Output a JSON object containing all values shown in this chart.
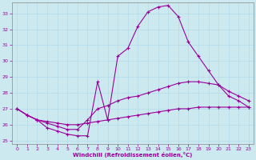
{
  "xlabel": "Windchill (Refroidissement éolien,°C)",
  "bg_color": "#cce9f0",
  "line_color": "#990099",
  "grid_color": "#add8e6",
  "spine_color": "#888888",
  "xlim": [
    -0.5,
    23.5
  ],
  "ylim": [
    24.8,
    33.7
  ],
  "yticks": [
    25,
    26,
    27,
    28,
    29,
    30,
    31,
    32,
    33
  ],
  "xticks": [
    0,
    1,
    2,
    3,
    4,
    5,
    6,
    7,
    8,
    9,
    10,
    11,
    12,
    13,
    14,
    15,
    16,
    17,
    18,
    19,
    20,
    21,
    22,
    23
  ],
  "line1_x": [
    0,
    1,
    2,
    3,
    4,
    5,
    6,
    7,
    8,
    9,
    10,
    11,
    12,
    13,
    14,
    15,
    16,
    17,
    18,
    19,
    20,
    21,
    22,
    23
  ],
  "line1_y": [
    27.0,
    26.6,
    26.3,
    25.8,
    25.6,
    25.4,
    25.3,
    25.3,
    28.7,
    26.3,
    30.3,
    30.8,
    32.2,
    33.1,
    33.4,
    33.5,
    32.8,
    31.2,
    30.3,
    29.4,
    28.5,
    27.8,
    27.5,
    27.1
  ],
  "line2_x": [
    0,
    1,
    2,
    3,
    4,
    5,
    6,
    7,
    8,
    9,
    10,
    11,
    12,
    13,
    14,
    15,
    16,
    17,
    18,
    19,
    20,
    21,
    22,
    23
  ],
  "line2_y": [
    27.0,
    26.6,
    26.3,
    26.1,
    25.9,
    25.7,
    25.7,
    26.3,
    27.0,
    27.2,
    27.5,
    27.7,
    27.8,
    28.0,
    28.2,
    28.4,
    28.6,
    28.7,
    28.7,
    28.6,
    28.5,
    28.1,
    27.8,
    27.5
  ],
  "line3_x": [
    0,
    1,
    2,
    3,
    4,
    5,
    6,
    7,
    8,
    9,
    10,
    11,
    12,
    13,
    14,
    15,
    16,
    17,
    18,
    19,
    20,
    21,
    22,
    23
  ],
  "line3_y": [
    27.0,
    26.6,
    26.3,
    26.2,
    26.1,
    26.0,
    26.0,
    26.1,
    26.2,
    26.3,
    26.4,
    26.5,
    26.6,
    26.7,
    26.8,
    26.9,
    27.0,
    27.0,
    27.1,
    27.1,
    27.1,
    27.1,
    27.1,
    27.1
  ]
}
